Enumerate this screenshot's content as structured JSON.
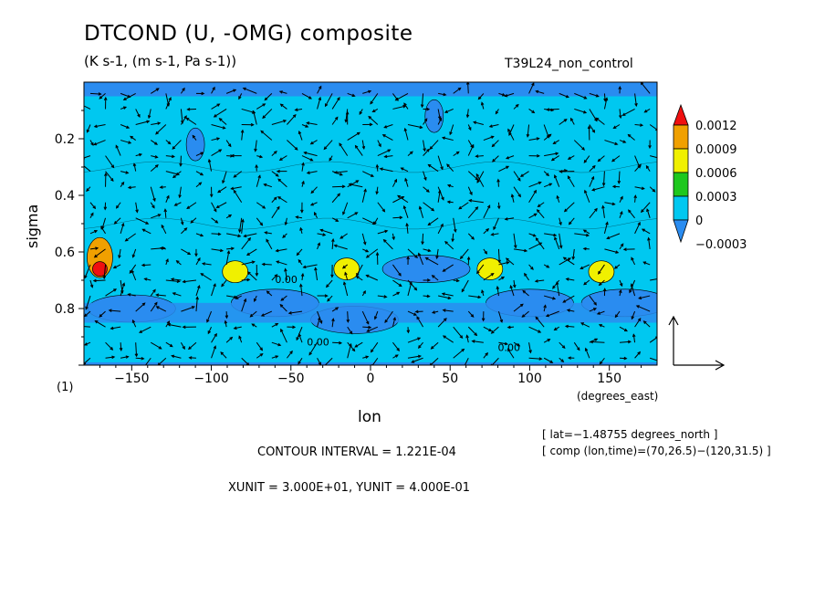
{
  "chart_data": {
    "type": "heatmap",
    "title": "DTCOND (U, -OMG) composite",
    "units": "(K s-1, (m s-1, Pa s-1))",
    "run_name": "T39L24_non_control",
    "panel_label": "(1)",
    "xlabel": "lon",
    "xunit_note": "(degrees_east)",
    "ylabel": "sigma",
    "xlim": [
      -180,
      180
    ],
    "ylim": [
      1.0,
      0.0
    ],
    "y_reversed": true,
    "x_ticks": [
      -150,
      -100,
      -50,
      0,
      50,
      100,
      150
    ],
    "x_tick_labels": [
      "−150",
      "−100",
      "−50",
      "0",
      "50",
      "100",
      "150"
    ],
    "y_ticks": [
      0.2,
      0.4,
      0.6,
      0.8
    ],
    "y_tick_labels": [
      "0.2",
      "0.4",
      "0.6",
      "0.8"
    ],
    "colorbar": {
      "levels": [
        -0.0003,
        0,
        0.0003,
        0.0006,
        0.0009,
        0.0012
      ],
      "labels": [
        "−0.0003",
        "0",
        "0.0003",
        "0.0006",
        "0.0009",
        "0.0012"
      ],
      "colors": [
        "#2a8cf0",
        "#00c8f0",
        "#1ec81e",
        "#f0f000",
        "#f0a000",
        "#f01010"
      ]
    },
    "contour_line_label": "0.00",
    "contour_interval_text": "CONTOUR INTERVAL = 1.221E-04",
    "vector_units_text": "XUNIT = 3.000E+01, YUNIT = 4.000E-01",
    "meta_lat": "[ lat=−1.48755 degrees_north ]",
    "meta_comp": "[ comp (lon,time)=(70,26.5)−(120,31.5) ]",
    "positive_features": [
      {
        "lon": -170,
        "sigma": 0.66,
        "level": 0.0009
      },
      {
        "lon": -170,
        "sigma": 0.62,
        "level": 0.0006
      },
      {
        "lon": -85,
        "sigma": 0.67,
        "level": 0.0003
      },
      {
        "lon": -15,
        "sigma": 0.66,
        "level": 0.0003
      },
      {
        "lon": 75,
        "sigma": 0.66,
        "level": 0.0003
      },
      {
        "lon": 145,
        "sigma": 0.67,
        "level": 0.0003
      }
    ],
    "negative_features": [
      {
        "lon": -150,
        "sigma": 0.8
      },
      {
        "lon": -60,
        "sigma": 0.78
      },
      {
        "lon": -10,
        "sigma": 0.84
      },
      {
        "lon": 35,
        "sigma": 0.66
      },
      {
        "lon": 100,
        "sigma": 0.78
      },
      {
        "lon": 160,
        "sigma": 0.78
      },
      {
        "lon": -110,
        "sigma": 0.22
      },
      {
        "lon": 40,
        "sigma": 0.12
      }
    ]
  }
}
